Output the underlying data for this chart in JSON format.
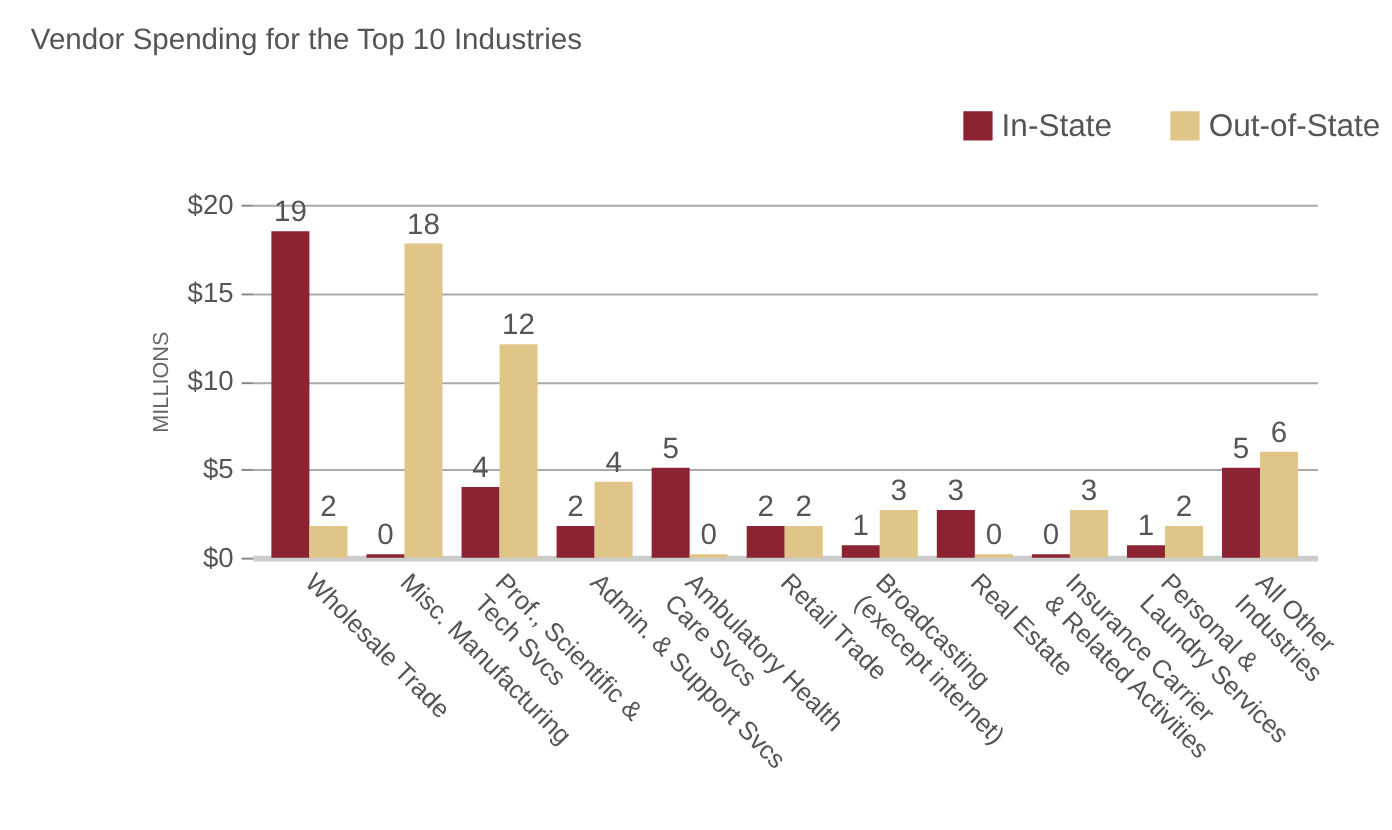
{
  "chart_data": {
    "type": "bar",
    "title": "Vendor Spending for the Top 10 Industries",
    "ylabel": "MILLIONS",
    "categories": [
      "Wholesale Trade",
      "Misc. Manufacturing",
      "Prof., Scientific &\nTech Svcs",
      "Admin. & Support Svcs",
      "Ambulatory Health\nCare Svcs",
      "Retail Trade",
      "Broadcasting\n(execept internet)",
      "Real Estate",
      "Insurance Carrier\n& Related Activities",
      "Personal &\nLaundry Services",
      "All Other\nIndustries"
    ],
    "series": [
      {
        "name": "In-State",
        "color": "#8b2332",
        "values": [
          18.5,
          0.2,
          4.0,
          1.8,
          5.1,
          1.8,
          0.7,
          2.7,
          0.2,
          0.7,
          5.1
        ],
        "value_labels": [
          "19",
          "0",
          "4",
          "2",
          "5",
          "2",
          "1",
          "3",
          "0",
          "1",
          "5"
        ]
      },
      {
        "name": "Out-of-State",
        "color": "#e0c588",
        "values": [
          1.8,
          17.8,
          12.1,
          4.3,
          0.2,
          1.8,
          2.7,
          0.2,
          2.7,
          1.8,
          6.0
        ],
        "value_labels": [
          "2",
          "18",
          "12",
          "4",
          "0",
          "2",
          "3",
          "0",
          "3",
          "2",
          "6"
        ]
      }
    ],
    "ylim": [
      0,
      20
    ],
    "yticks": [
      {
        "value": 0,
        "label": "$0"
      },
      {
        "value": 5,
        "label": "$5"
      },
      {
        "value": 10,
        "label": "$10"
      },
      {
        "value": 15,
        "label": "$15"
      },
      {
        "value": 20,
        "label": "$20"
      }
    ],
    "grid": "y",
    "legend": "top right"
  }
}
